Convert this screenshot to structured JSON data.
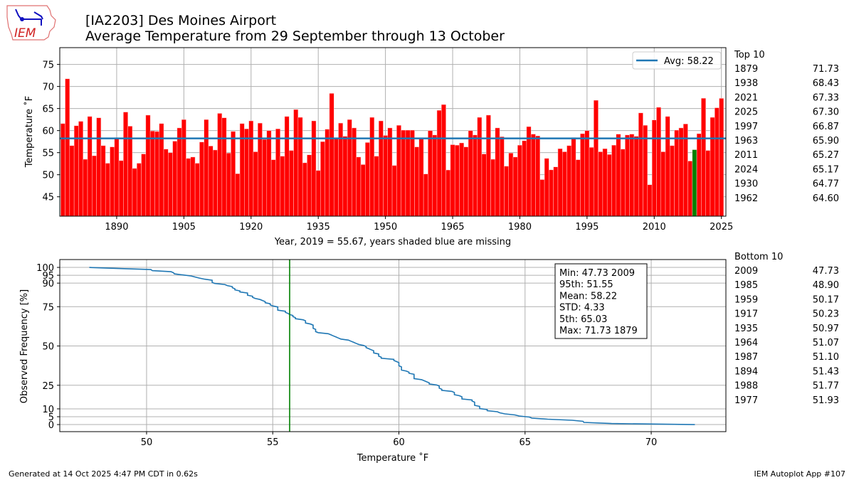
{
  "header": {
    "title_line1": "[IA2203] Des Moines Airport",
    "title_line2": "Average Temperature from 29 September through 13 October",
    "logo_text": "IEM"
  },
  "colors": {
    "bar": "#ff0000",
    "highlight": "#008000",
    "avg_line": "#1f77b4",
    "grid": "#b0b0b0"
  },
  "chart_data": [
    {
      "type": "bar",
      "title": "Average Temperature from 29 September through 13 October",
      "xlabel": "Year, 2019 = 55.67, years shaded blue are missing",
      "ylabel": "Temperature ˚F",
      "xlim": [
        1877.3,
        2026
      ],
      "ylim": [
        40.6,
        78.8
      ],
      "xticks": [
        1890,
        1905,
        1920,
        1935,
        1950,
        1965,
        1980,
        1995,
        2010,
        2025
      ],
      "yticks": [
        45,
        50,
        55,
        60,
        65,
        70,
        75
      ],
      "grid": true,
      "start_year": 1878,
      "highlight_year": 2019,
      "values": [
        61.6,
        71.73,
        56.6,
        61.1,
        62.1,
        53.5,
        63.2,
        54.3,
        62.9,
        56.6,
        52.6,
        56.3,
        58.2,
        53.2,
        64.2,
        61.0,
        51.43,
        52.6,
        54.7,
        63.5,
        59.9,
        59.8,
        61.6,
        55.8,
        55.0,
        57.6,
        60.6,
        62.5,
        53.7,
        54.0,
        52.6,
        57.4,
        62.5,
        56.5,
        55.6,
        63.9,
        62.9,
        54.9,
        59.8,
        50.23,
        61.6,
        60.4,
        62.2,
        55.2,
        61.7,
        58.0,
        60.0,
        53.4,
        60.4,
        54.2,
        63.2,
        55.5,
        64.77,
        63.0,
        52.7,
        54.5,
        62.2,
        50.97,
        57.5,
        60.3,
        68.43,
        58.3,
        61.7,
        58.7,
        62.5,
        60.6,
        54.0,
        52.3,
        57.3,
        63.0,
        54.2,
        62.2,
        58.9,
        60.6,
        52.1,
        61.2,
        60.1,
        60.1,
        60.1,
        56.3,
        58.1,
        50.17,
        60.0,
        59.0,
        64.6,
        65.9,
        51.07,
        56.8,
        56.7,
        57.2,
        56.3,
        60.0,
        59.0,
        63.0,
        54.7,
        63.5,
        53.5,
        60.6,
        58.6,
        51.93,
        54.9,
        54.0,
        56.7,
        57.7,
        60.9,
        59.2,
        58.8,
        48.9,
        53.7,
        51.1,
        51.77,
        55.9,
        55.2,
        56.6,
        58.4,
        53.4,
        59.3,
        60.0,
        56.2,
        66.87,
        55.2,
        55.9,
        54.6,
        56.7,
        59.2,
        55.8,
        59.0,
        59.2,
        58.7,
        64.0,
        61.2,
        47.73,
        62.4,
        65.27,
        55.2,
        63.2,
        56.6,
        60.1,
        60.6,
        61.5,
        53.1,
        55.67,
        59.3,
        67.33,
        55.5,
        63.0,
        65.17,
        67.3
      ],
      "average": 58.22,
      "legend": {
        "label": "Avg: 58.22",
        "placement": "top-right"
      }
    },
    {
      "type": "line",
      "xlabel": "Temperature ˚F",
      "ylabel": "Observed Frequency [%]",
      "xlim": [
        46.56,
        72.96
      ],
      "ylim": [
        -4.5,
        105
      ],
      "xticks": [
        50,
        55,
        60,
        65,
        70
      ],
      "yticks": [
        0,
        5,
        10,
        25,
        50,
        75,
        90,
        95,
        100
      ],
      "grid": true,
      "series_note": "exceedance frequency of yearly values",
      "marker_value": 55.67,
      "stats": [
        "Min: 47.73 2009",
        "95th: 51.55",
        "Mean: 58.22",
        "STD: 4.33",
        "5th: 65.03",
        "Max: 71.73 1879"
      ]
    }
  ],
  "top10": {
    "header": "Top 10",
    "rows": [
      [
        "1879",
        "71.73"
      ],
      [
        "1938",
        "68.43"
      ],
      [
        "2021",
        "67.33"
      ],
      [
        "2025",
        "67.30"
      ],
      [
        "1997",
        "66.87"
      ],
      [
        "1963",
        "65.90"
      ],
      [
        "2011",
        "65.27"
      ],
      [
        "2024",
        "65.17"
      ],
      [
        "1930",
        "64.77"
      ],
      [
        "1962",
        "64.60"
      ]
    ]
  },
  "bottom10": {
    "header": "Bottom 10",
    "rows": [
      [
        "2009",
        "47.73"
      ],
      [
        "1985",
        "48.90"
      ],
      [
        "1959",
        "50.17"
      ],
      [
        "1917",
        "50.23"
      ],
      [
        "1935",
        "50.97"
      ],
      [
        "1964",
        "51.07"
      ],
      [
        "1987",
        "51.10"
      ],
      [
        "1894",
        "51.43"
      ],
      [
        "1988",
        "51.77"
      ],
      [
        "1977",
        "51.93"
      ]
    ]
  },
  "footer": {
    "left": "Generated at 14 Oct 2025 4:47 PM CDT in 0.62s",
    "right": "IEM Autoplot App #107"
  }
}
